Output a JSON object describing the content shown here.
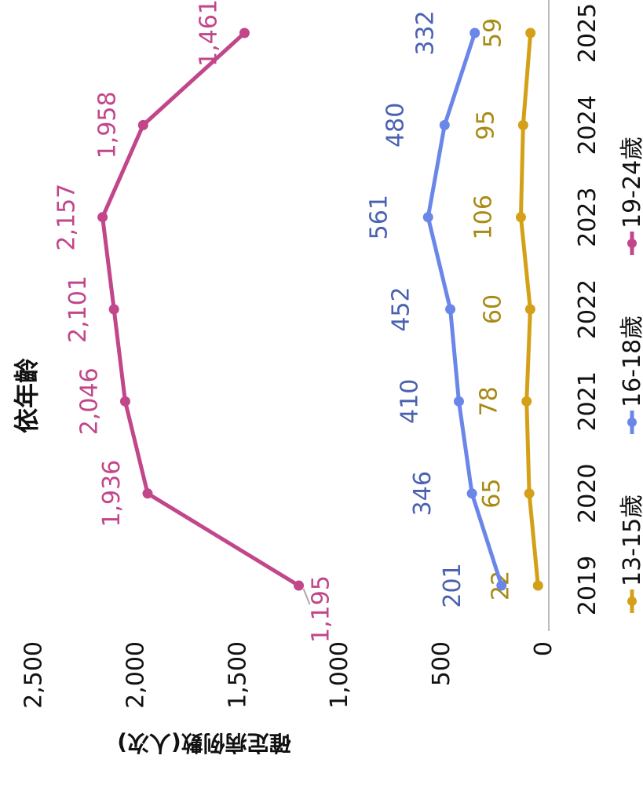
{
  "chart_data": {
    "type": "line",
    "title": "依年齡",
    "xlabel": "",
    "ylabel": "確定病例數(人次)",
    "x": [
      "2019",
      "2020",
      "2021",
      "2022",
      "2023",
      "2024",
      "2025"
    ],
    "ylim": [
      0,
      2500
    ],
    "yticks": [
      "0",
      "500",
      "1,000",
      "1,500",
      "2,000",
      "2,500"
    ],
    "ytick_values": [
      0,
      500,
      1000,
      1500,
      2000,
      2500
    ],
    "grid": false,
    "legend_position": "bottom",
    "series": [
      {
        "name": "13-15歲",
        "color": "#d4a017",
        "label_color": "#a88a14",
        "values": [
          22,
          65,
          78,
          60,
          106,
          95,
          59
        ],
        "labels": [
          "22",
          "65",
          "78",
          "60",
          "106",
          "95",
          "59"
        ]
      },
      {
        "name": "16-18歲",
        "color": "#6a86e8",
        "label_color": "#4a62b0",
        "values": [
          201,
          346,
          410,
          452,
          561,
          480,
          332
        ],
        "labels": [
          "201",
          "346",
          "410",
          "452",
          "561",
          "480",
          "332"
        ]
      },
      {
        "name": "19-24歲",
        "color": "#c2468a",
        "label_color": "#c2468a",
        "values": [
          1195,
          1936,
          2046,
          2101,
          2157,
          1958,
          1461
        ],
        "labels": [
          "1,195",
          "1,936",
          "2,046",
          "2,101",
          "2,157",
          "1,958",
          "1,461"
        ]
      }
    ]
  }
}
